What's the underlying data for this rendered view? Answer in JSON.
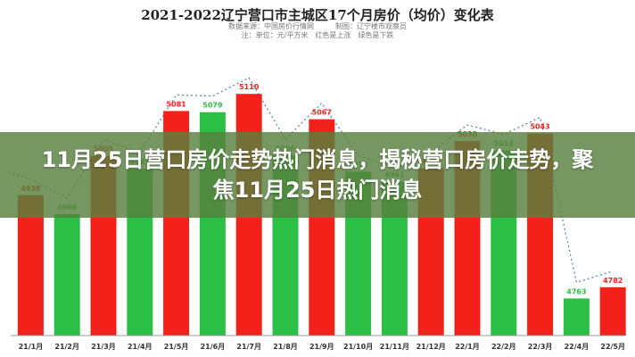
{
  "chart_data": {
    "type": "bar",
    "title": "2021-2022辽宁营口市主城区17个月房价（均价）变化表",
    "source_lines": [
      "数据来源：中国房价行情网　　　制图：辽宁楼市观察员",
      "注：单位：元/平方米　红色是上涨　绿色是下跌"
    ],
    "categories": [
      "21/1月",
      "21/2月",
      "21/3月",
      "21/4月",
      "21/5月",
      "21/6月",
      "21/7月",
      "21/8月",
      "21/9月",
      "21/10月",
      "21/11月",
      "21/12月",
      "22/1月",
      "22/2月",
      "22/3月",
      "22/4月",
      "22/5月"
    ],
    "values": [
      4938,
      4906,
      5005,
      4983,
      5081,
      5079,
      5110,
      5006,
      5067,
      4978,
      4961,
      4984,
      5030,
      5014,
      5043,
      4763,
      4782
    ],
    "trend": [
      "up",
      "down",
      "up",
      "down",
      "up",
      "down",
      "up",
      "down",
      "up",
      "down",
      "down",
      "up",
      "up",
      "down",
      "up",
      "down",
      "up"
    ],
    "ylim": [
      4700,
      5130
    ],
    "legend": "none",
    "grid": false,
    "colors": {
      "up": "#f2221b",
      "down": "#2cbf45",
      "trend_line": "#4a7fb8"
    }
  },
  "overlay": {
    "headline": "11月25日营口房价走势热门消息，揭秘营口房价走势，聚焦11月25日热门消息",
    "color": "#58803e"
  }
}
